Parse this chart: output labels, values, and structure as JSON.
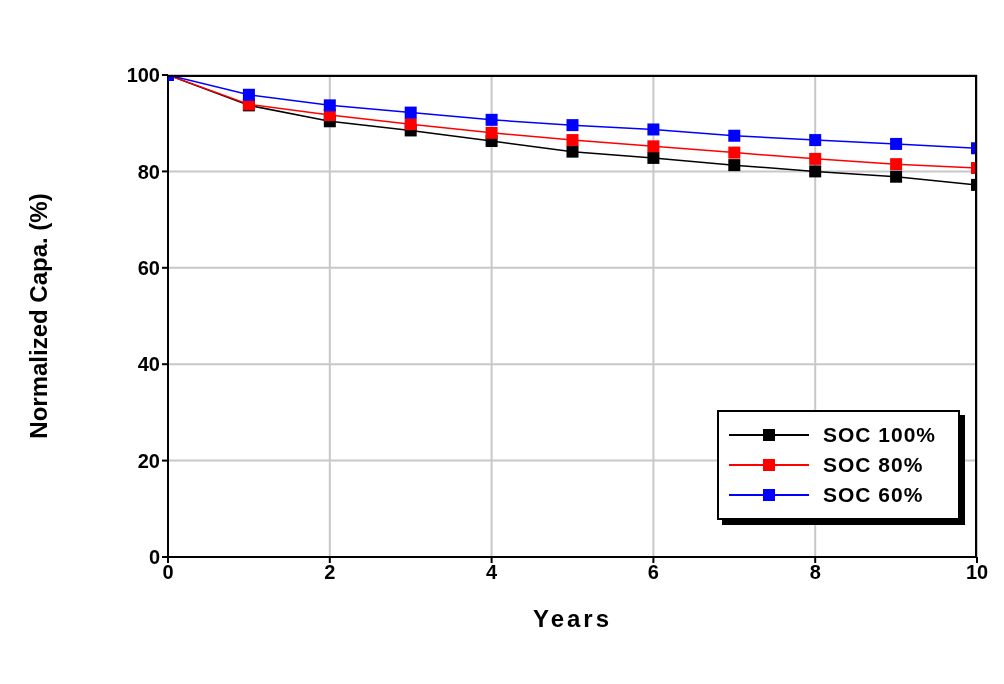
{
  "chart_data": {
    "type": "line",
    "xlabel": "Years",
    "ylabel": "Normalized Capa. (%)",
    "x": [
      0,
      1,
      2,
      3,
      4,
      5,
      6,
      7,
      8,
      9,
      10
    ],
    "series": [
      {
        "name": "SOC 100%",
        "color": "#000000",
        "values": [
          100,
          93.7,
          90.4,
          88.5,
          86.3,
          84.1,
          82.8,
          81.3,
          80.0,
          78.9,
          77.2
        ]
      },
      {
        "name": "SOC 80%",
        "color": "#ff0000",
        "values": [
          100,
          93.9,
          91.7,
          89.8,
          88.0,
          86.5,
          85.2,
          83.9,
          82.6,
          81.5,
          80.7
        ]
      },
      {
        "name": "SOC 60%",
        "color": "#0000ff",
        "values": [
          100,
          95.9,
          93.7,
          92.2,
          90.7,
          89.6,
          88.7,
          87.4,
          86.5,
          85.7,
          84.8
        ]
      }
    ],
    "xlim": [
      0,
      10
    ],
    "xticks": [
      0,
      2,
      4,
      6,
      8,
      10
    ],
    "ylim": [
      0,
      100
    ],
    "yticks": [
      0,
      20,
      40,
      60,
      80,
      100
    ],
    "grid": true,
    "legend": "bottom right",
    "marker": "square",
    "line_style": "solid"
  }
}
